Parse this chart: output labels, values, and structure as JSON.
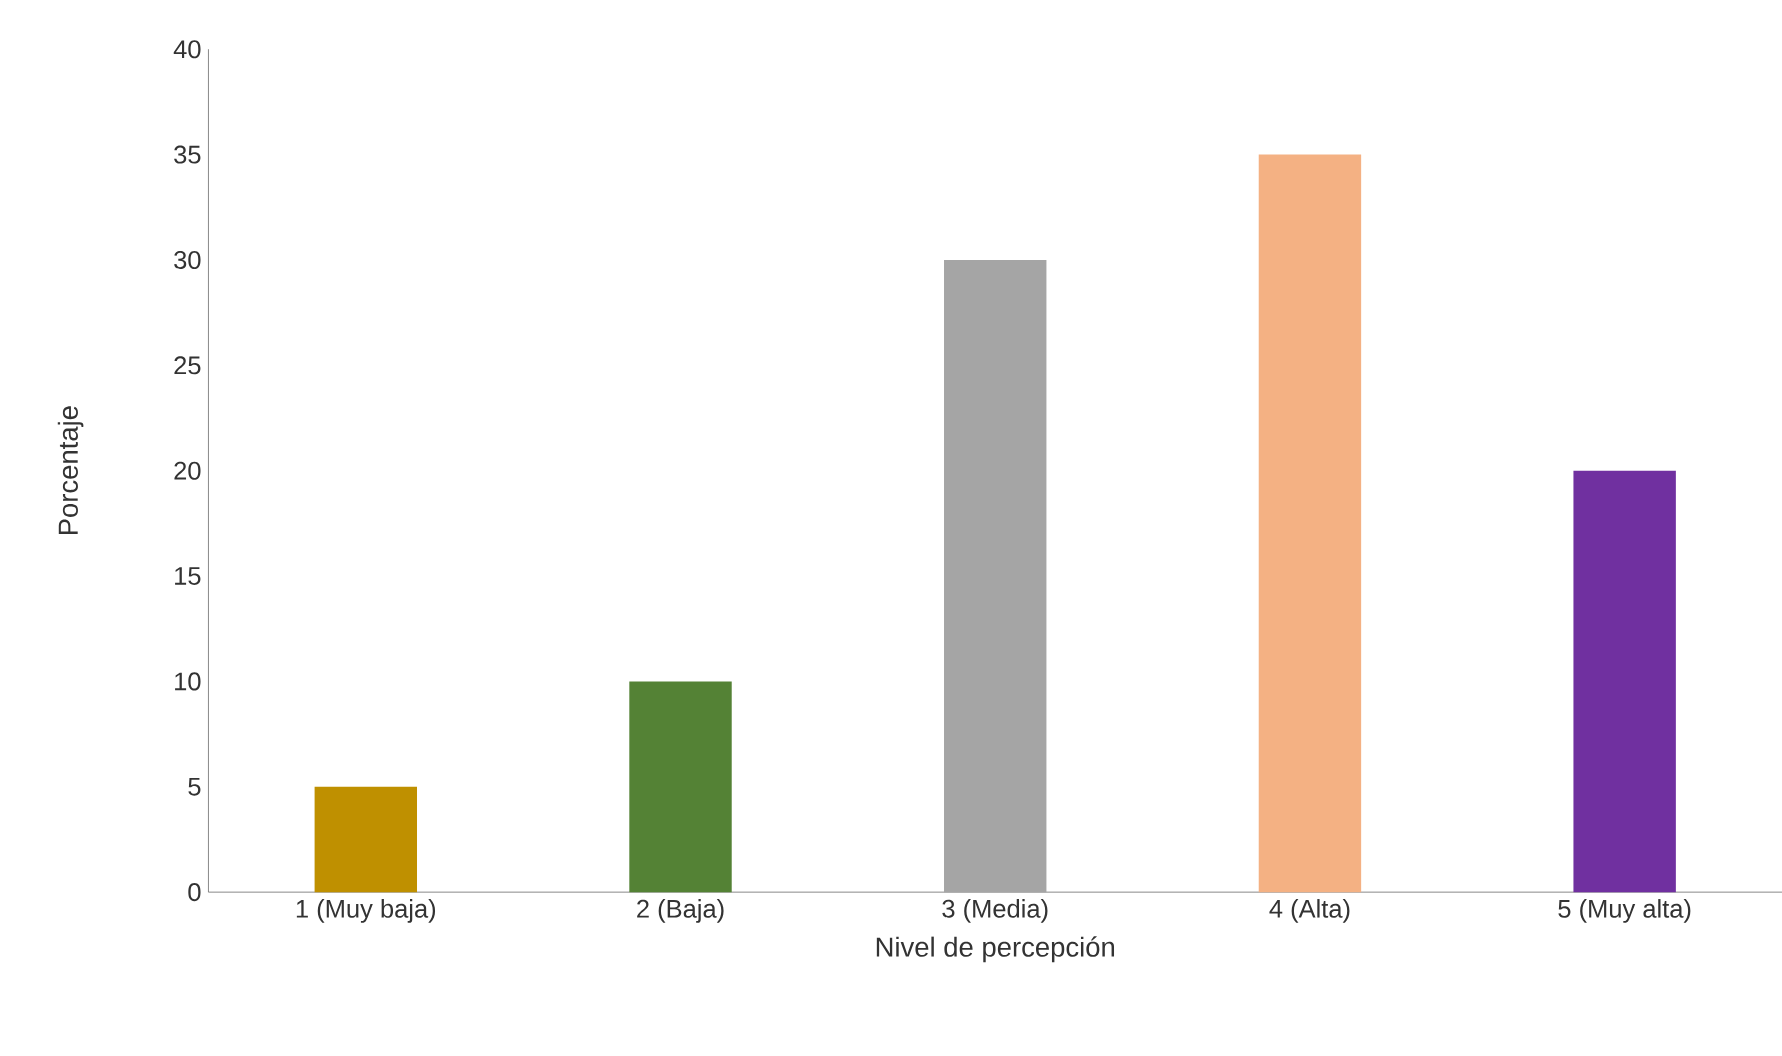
{
  "chart_data": {
    "type": "bar",
    "xlabel": "Nivel de percepción",
    "ylabel": "Porcentaje",
    "categories": [
      "1 (Muy baja)",
      "2 (Baja)",
      "3 (Media)",
      "4 (Alta)",
      "5 (Muy alta)"
    ],
    "values": [
      5,
      10,
      30,
      35,
      20
    ],
    "colors": [
      "#bf9000",
      "#548235",
      "#a5a5a5",
      "#f4b183",
      "#7030a0"
    ],
    "ylim": [
      0,
      40
    ],
    "yticks": [
      0,
      5,
      10,
      15,
      20,
      25,
      30,
      35,
      40
    ]
  }
}
